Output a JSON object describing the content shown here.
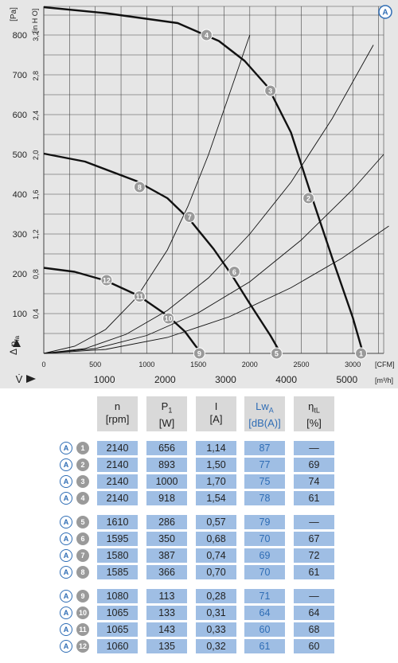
{
  "chart_data": {
    "type": "line",
    "title": "",
    "badge": "A",
    "y_unit_primary": "[Pa]",
    "y_unit_secondary": "[inH2O]",
    "y_unit_secondary_display": "[in H O]",
    "y_label": "Δ p",
    "y_label_sub": "fa",
    "x_unit_primary": "[CFM]",
    "x_unit_secondary": "[m³/h]",
    "x_label": "V̇",
    "ylim": [
      0,
      880
    ],
    "xlim": [
      0,
      3300
    ],
    "y_ticks_pa": [
      100,
      200,
      300,
      400,
      500,
      600,
      700,
      800
    ],
    "y_ticks_inh2o": [
      {
        "label": "0,4",
        "value": 0.4
      },
      {
        "label": "0,8",
        "value": 0.8
      },
      {
        "label": "1,2",
        "value": 1.2
      },
      {
        "label": "1,6",
        "value": 1.6
      },
      {
        "label": "2,0",
        "value": 2.0
      },
      {
        "label": "2,4",
        "value": 2.4
      },
      {
        "label": "2,8",
        "value": 2.8
      },
      {
        "label": "3,2",
        "value": 3.2
      }
    ],
    "x_ticks_cfm": [
      0,
      500,
      1000,
      1500,
      2000,
      2500,
      3000
    ],
    "x_ticks_m3h": [
      1000,
      2000,
      3000,
      4000,
      5000
    ],
    "series": [
      {
        "speed_rpm": 2140,
        "points": [
          [
            0,
            870
          ],
          [
            600,
            855
          ],
          [
            1300,
            830
          ],
          [
            1700,
            785
          ],
          [
            1950,
            735
          ],
          [
            2180,
            668
          ],
          [
            2400,
            555
          ],
          [
            2600,
            395
          ],
          [
            2800,
            240
          ],
          [
            3000,
            90
          ],
          [
            3100,
            0
          ]
        ]
      },
      {
        "speed_rpm": 1595,
        "points": [
          [
            0,
            502
          ],
          [
            400,
            482
          ],
          [
            900,
            433
          ],
          [
            1200,
            390
          ],
          [
            1420,
            335
          ],
          [
            1650,
            262
          ],
          [
            1830,
            195
          ],
          [
            2000,
            125
          ],
          [
            2200,
            45
          ],
          [
            2300,
            0
          ]
        ]
      },
      {
        "speed_rpm": 1065,
        "points": [
          [
            0,
            215
          ],
          [
            300,
            205
          ],
          [
            600,
            183
          ],
          [
            920,
            145
          ],
          [
            1200,
            95
          ],
          [
            1370,
            55
          ],
          [
            1470,
            20
          ],
          [
            1530,
            0
          ]
        ]
      }
    ],
    "system_curves": [
      {
        "points": [
          [
            0,
            0
          ],
          [
            300,
            18
          ],
          [
            600,
            60
          ],
          [
            900,
            140
          ],
          [
            1200,
            260
          ],
          [
            1400,
            370
          ],
          [
            1600,
            500
          ],
          [
            1800,
            650
          ],
          [
            2000,
            800
          ]
        ]
      },
      {
        "points": [
          [
            0,
            0
          ],
          [
            400,
            12
          ],
          [
            800,
            48
          ],
          [
            1200,
            108
          ],
          [
            1600,
            190
          ],
          [
            2000,
            300
          ],
          [
            2400,
            430
          ],
          [
            2800,
            590
          ],
          [
            3200,
            775
          ]
        ]
      },
      {
        "points": [
          [
            0,
            0
          ],
          [
            500,
            12
          ],
          [
            1000,
            45
          ],
          [
            1500,
            102
          ],
          [
            2000,
            180
          ],
          [
            2500,
            285
          ],
          [
            3000,
            412
          ],
          [
            3300,
            500
          ]
        ]
      },
      {
        "points": [
          [
            0,
            0
          ],
          [
            600,
            10
          ],
          [
            1200,
            40
          ],
          [
            1800,
            92
          ],
          [
            2400,
            165
          ],
          [
            2900,
            240
          ],
          [
            3350,
            320
          ]
        ]
      }
    ],
    "operating_points": [
      {
        "label": "1",
        "cfm": 3080,
        "pa": 0
      },
      {
        "label": "2",
        "cfm": 2570,
        "pa": 390
      },
      {
        "label": "3",
        "cfm": 2200,
        "pa": 660
      },
      {
        "label": "4",
        "cfm": 1580,
        "pa": 800
      },
      {
        "label": "5",
        "cfm": 2260,
        "pa": 0
      },
      {
        "label": "6",
        "cfm": 1850,
        "pa": 205
      },
      {
        "label": "7",
        "cfm": 1415,
        "pa": 343
      },
      {
        "label": "8",
        "cfm": 930,
        "pa": 418
      },
      {
        "label": "9",
        "cfm": 1510,
        "pa": 0
      },
      {
        "label": "10",
        "cfm": 1210,
        "pa": 88
      },
      {
        "label": "11",
        "cfm": 930,
        "pa": 143
      },
      {
        "label": "12",
        "cfm": 610,
        "pa": 184
      }
    ]
  },
  "table": {
    "headers": [
      {
        "label": "n",
        "unit": "[rpm]"
      },
      {
        "label": "P1",
        "unit": "[W]"
      },
      {
        "label": "I",
        "unit": "[A]"
      },
      {
        "label": "LwA",
        "unit": "[dB(A)]"
      },
      {
        "label": "ηtL",
        "unit": "[%]"
      }
    ],
    "headers_display": [
      {
        "main": "n",
        "sub": ""
      },
      {
        "main": "P",
        "sub": "1"
      },
      {
        "main": "I",
        "sub": ""
      },
      {
        "main": "Lw",
        "sub": "A"
      },
      {
        "main": "η",
        "sub": "tL"
      }
    ],
    "rows": [
      {
        "badge": "A",
        "num": "1",
        "cells": [
          "2140",
          "656",
          "1,14",
          "87",
          "—"
        ]
      },
      {
        "badge": "A",
        "num": "2",
        "cells": [
          "2140",
          "893",
          "1,50",
          "77",
          "69"
        ]
      },
      {
        "badge": "A",
        "num": "3",
        "cells": [
          "2140",
          "1000",
          "1,70",
          "75",
          "74"
        ]
      },
      {
        "badge": "A",
        "num": "4",
        "cells": [
          "2140",
          "918",
          "1,54",
          "78",
          "61"
        ]
      },
      {
        "badge": "A",
        "num": "5",
        "cells": [
          "1610",
          "286",
          "0,57",
          "79",
          "—"
        ]
      },
      {
        "badge": "A",
        "num": "6",
        "cells": [
          "1595",
          "350",
          "0,68",
          "70",
          "67"
        ]
      },
      {
        "badge": "A",
        "num": "7",
        "cells": [
          "1580",
          "387",
          "0,74",
          "69",
          "72"
        ]
      },
      {
        "badge": "A",
        "num": "8",
        "cells": [
          "1585",
          "366",
          "0,70",
          "70",
          "61"
        ]
      },
      {
        "badge": "A",
        "num": "9",
        "cells": [
          "1080",
          "113",
          "0,28",
          "71",
          "—"
        ]
      },
      {
        "badge": "A",
        "num": "10",
        "cells": [
          "1065",
          "133",
          "0,31",
          "64",
          "64"
        ]
      },
      {
        "badge": "A",
        "num": "11",
        "cells": [
          "1065",
          "143",
          "0,33",
          "60",
          "68"
        ]
      },
      {
        "badge": "A",
        "num": "12",
        "cells": [
          "1060",
          "135",
          "0,32",
          "61",
          "60"
        ]
      }
    ]
  },
  "colors": {
    "chart_bg": "#e6e6e6",
    "grid": "#444444",
    "curve": "#111111",
    "badge_grey": "#9a9a9a",
    "accent_blue": "#2f6db5",
    "cell_blue": "#9fbee4",
    "header_grey": "#d9d9d9"
  }
}
